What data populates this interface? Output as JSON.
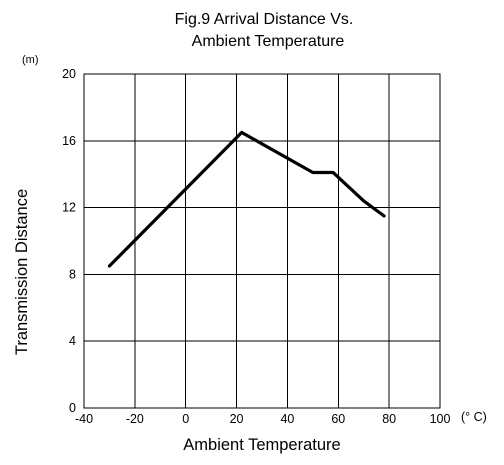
{
  "chart_data": {
    "type": "line",
    "title_lines": [
      "Fig.9 Arrival Distance Vs.",
      "Ambient Temperature"
    ],
    "xlabel": "Ambient Temperature",
    "ylabel": "Transmission Distance",
    "x_unit": "(° C)",
    "y_unit": "(m)",
    "xlim": [
      -40,
      100
    ],
    "ylim": [
      0,
      20
    ],
    "x_ticks": [
      -40,
      -20,
      0,
      20,
      40,
      60,
      80,
      100
    ],
    "y_ticks": [
      0,
      4,
      8,
      12,
      16,
      20
    ],
    "grid": true,
    "series": [
      {
        "color": "#000000",
        "x": [
          -30,
          22,
          50,
          58,
          70,
          78
        ],
        "y": [
          8.5,
          16.5,
          14.1,
          14.1,
          12.4,
          11.5
        ]
      }
    ]
  }
}
